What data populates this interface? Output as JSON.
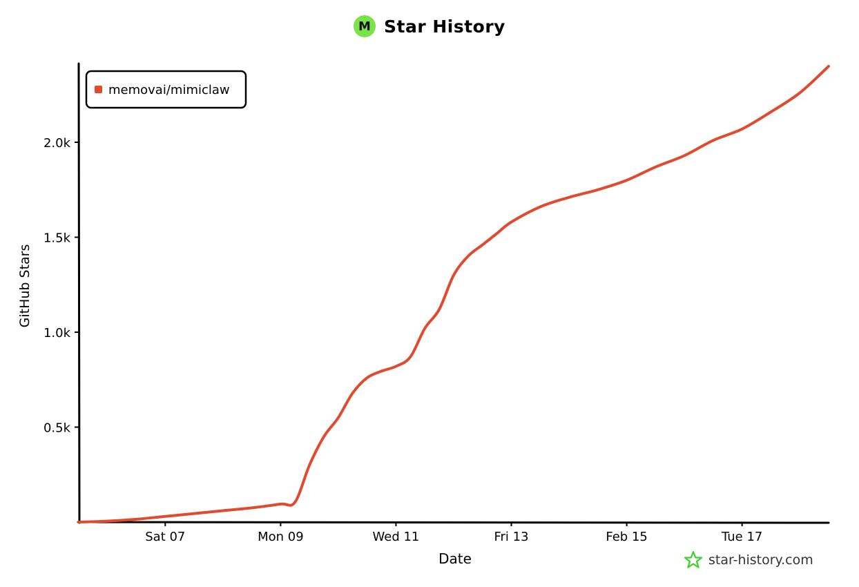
{
  "header": {
    "logo_letter": "M",
    "title": "Star History"
  },
  "footer": {
    "text": "star-history.com"
  },
  "colors": {
    "series": "#e04a2f",
    "logo": "#7be34a",
    "footer_star": "#3ad12a"
  },
  "chart_data": {
    "type": "line",
    "xlabel": "Date",
    "ylabel": "GitHub Stars",
    "x_ticks": [
      "Sat 07",
      "Mon 09",
      "Wed 11",
      "Fri 13",
      "Feb 15",
      "Tue 17"
    ],
    "y_ticks": [
      "0.5k",
      "1.0k",
      "1.5k",
      "2.0k"
    ],
    "y_tick_values": [
      500,
      1000,
      1500,
      2000
    ],
    "ylim": [
      0,
      2400
    ],
    "grid": false,
    "legend_position": "top-left",
    "series": [
      {
        "name": "memovai/mimiclaw",
        "x": [
          "2026-02-05T12:00",
          "2026-02-06T00:00",
          "2026-02-06T12:00",
          "2026-02-07T00:00",
          "2026-02-07T12:00",
          "2026-02-08T00:00",
          "2026-02-08T12:00",
          "2026-02-09T00:00",
          "2026-02-09T06:00",
          "2026-02-09T12:00",
          "2026-02-09T18:00",
          "2026-02-10T00:00",
          "2026-02-10T06:00",
          "2026-02-10T12:00",
          "2026-02-10T18:00",
          "2026-02-11T00:00",
          "2026-02-11T06:00",
          "2026-02-11T12:00",
          "2026-02-11T18:00",
          "2026-02-12T00:00",
          "2026-02-12T06:00",
          "2026-02-12T12:00",
          "2026-02-12T18:00",
          "2026-02-13T00:00",
          "2026-02-13T12:00",
          "2026-02-14T00:00",
          "2026-02-14T12:00",
          "2026-02-15T00:00",
          "2026-02-15T12:00",
          "2026-02-16T00:00",
          "2026-02-16T12:00",
          "2026-02-17T00:00",
          "2026-02-17T12:00",
          "2026-02-18T00:00",
          "2026-02-18T12:00"
        ],
        "values": [
          0,
          5,
          15,
          30,
          45,
          60,
          75,
          95,
          105,
          300,
          450,
          550,
          680,
          760,
          795,
          820,
          870,
          1020,
          1120,
          1300,
          1400,
          1460,
          1520,
          1580,
          1660,
          1710,
          1750,
          1800,
          1870,
          1930,
          2010,
          2070,
          2160,
          2260,
          2400
        ]
      }
    ]
  }
}
